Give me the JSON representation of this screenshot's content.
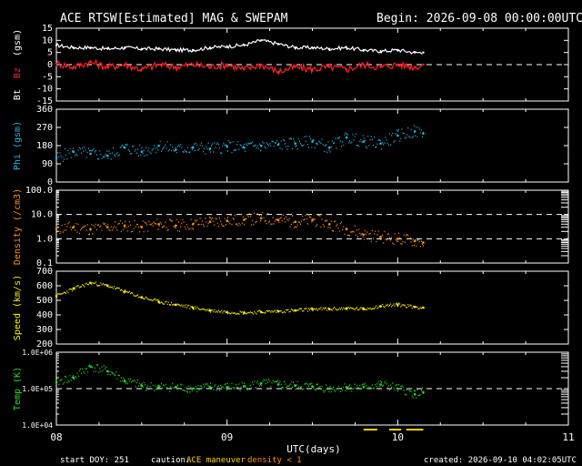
{
  "header": {
    "title": "ACE RTSW[Estimated] MAG & SWEPAM",
    "begin": "Begin: 2026-09-08 00:00:00UTC"
  },
  "footer": {
    "start_doy": "start DOY: 251",
    "caution_label": "caution:",
    "caution_maneuver": "ACE maneuver",
    "caution_density": "density < 1",
    "created": "created: 2026-09-10 04:02:05UTC"
  },
  "colors": {
    "bt": "#ffffff",
    "bz": "#ff2020",
    "phi": "#20b8e8",
    "density": "#ff9010",
    "speed": "#ffee00",
    "temp": "#20e020",
    "maneuver": "#ffd000",
    "density_caution": "#ff9010"
  },
  "chart_data": [
    {
      "type": "line",
      "panel": "mag_b",
      "ylabel_bt": "Bt",
      "ylabel_bz": "Bz",
      "ylabel_unit": "(gsm)",
      "ylim": [
        -15,
        15
      ],
      "yticks": [
        "10",
        "5",
        "0",
        "-5",
        "-10",
        "-15"
      ],
      "ytick_values": [
        10,
        5,
        0,
        -5,
        -10,
        -15
      ],
      "top_tick": "15",
      "x_days": [
        8.0,
        8.1,
        8.2,
        8.3,
        8.4,
        8.5,
        8.6,
        8.7,
        8.8,
        8.9,
        9.0,
        9.1,
        9.2,
        9.3,
        9.4,
        9.5,
        9.6,
        9.7,
        9.8,
        9.9,
        10.0,
        10.1,
        10.15
      ],
      "series": [
        {
          "name": "Bt",
          "values": [
            8,
            7,
            7,
            6.5,
            7,
            6.5,
            6.5,
            6,
            6,
            7,
            7.5,
            8,
            10,
            8.5,
            7,
            7,
            6.5,
            7,
            6,
            5.5,
            6,
            5,
            5
          ]
        },
        {
          "name": "Bz",
          "values": [
            0.5,
            -1,
            1,
            -1,
            0,
            -2,
            0,
            -1,
            0,
            -1,
            0,
            -2,
            0,
            -3,
            -1,
            -2,
            -1,
            -2,
            0,
            -1,
            0,
            -1,
            0
          ]
        }
      ],
      "dashed_ref": 0
    },
    {
      "type": "scatter",
      "panel": "phi",
      "ylabel": "Phi (gsm)",
      "ylim": [
        0,
        360
      ],
      "yticks": [
        "360",
        "270",
        "180",
        "90",
        "0"
      ],
      "ytick_values": [
        360,
        270,
        180,
        90,
        0
      ],
      "x_days": [
        8.0,
        8.1,
        8.2,
        8.3,
        8.4,
        8.5,
        8.6,
        8.7,
        8.8,
        8.9,
        9.0,
        9.1,
        9.2,
        9.3,
        9.4,
        9.5,
        9.6,
        9.7,
        9.8,
        9.9,
        10.0,
        10.1,
        10.15
      ],
      "values": [
        120,
        150,
        140,
        130,
        170,
        150,
        180,
        160,
        170,
        165,
        175,
        170,
        180,
        185,
        190,
        200,
        170,
        220,
        200,
        190,
        230,
        250,
        240
      ]
    },
    {
      "type": "scatter",
      "panel": "density",
      "ylabel": "Density (/cm3)",
      "yscale": "log",
      "ylim": [
        0.1,
        100
      ],
      "yticks": [
        "100.0",
        "10.0",
        "1.0",
        "0.1"
      ],
      "ytick_values": [
        100,
        10,
        1,
        0.1
      ],
      "dashed_refs": [
        10,
        1
      ],
      "x_days": [
        8.0,
        8.1,
        8.2,
        8.3,
        8.4,
        8.5,
        8.6,
        8.7,
        8.8,
        8.9,
        9.0,
        9.1,
        9.2,
        9.3,
        9.4,
        9.5,
        9.6,
        9.7,
        9.8,
        9.9,
        10.0,
        10.1,
        10.15
      ],
      "values": [
        2.5,
        3.0,
        2.5,
        3.0,
        3.5,
        3.0,
        4.0,
        3.5,
        4.0,
        5.0,
        5.5,
        6.0,
        7.0,
        6.0,
        5.0,
        6.0,
        4.0,
        2.5,
        1.5,
        1.2,
        1.0,
        0.8,
        0.7
      ]
    },
    {
      "type": "scatter",
      "panel": "speed",
      "ylabel": "Speed (km/s)",
      "ylim": [
        200,
        700
      ],
      "yticks": [
        "700",
        "600",
        "500",
        "400",
        "300",
        "200"
      ],
      "ytick_values": [
        700,
        600,
        500,
        400,
        300,
        200
      ],
      "x_days": [
        8.0,
        8.1,
        8.2,
        8.3,
        8.4,
        8.5,
        8.6,
        8.7,
        8.8,
        8.9,
        9.0,
        9.1,
        9.2,
        9.3,
        9.4,
        9.5,
        9.6,
        9.7,
        9.8,
        9.9,
        10.0,
        10.1,
        10.15
      ],
      "values": [
        530,
        580,
        620,
        600,
        560,
        520,
        490,
        470,
        450,
        430,
        420,
        415,
        420,
        425,
        430,
        440,
        440,
        445,
        440,
        460,
        470,
        455,
        450
      ]
    },
    {
      "type": "scatter",
      "panel": "temp",
      "ylabel": "Temp (K)",
      "yscale": "log",
      "ylim": [
        10000,
        1000000
      ],
      "yticks": [
        "1.0E+06",
        "1.0E+05",
        "1.0E+04"
      ],
      "ytick_values": [
        1000000,
        100000,
        10000
      ],
      "dashed_ref": 100000,
      "x_days": [
        8.0,
        8.1,
        8.2,
        8.3,
        8.4,
        8.5,
        8.6,
        8.7,
        8.8,
        8.9,
        9.0,
        9.1,
        9.2,
        9.3,
        9.4,
        9.5,
        9.6,
        9.7,
        9.8,
        9.9,
        10.0,
        10.1,
        10.15
      ],
      "values": [
        150000,
        200000,
        400000,
        300000,
        160000,
        120000,
        110000,
        110000,
        100000,
        110000,
        110000,
        115000,
        140000,
        130000,
        120000,
        115000,
        100000,
        110000,
        110000,
        130000,
        100000,
        70000,
        80000
      ]
    },
    {
      "panel": "xaxis",
      "xlabel": "UTC(days)",
      "xticks": [
        "08",
        "09",
        "10",
        "11"
      ],
      "xtick_values": [
        8,
        9,
        10,
        11
      ],
      "xlim": [
        8,
        11
      ]
    }
  ]
}
